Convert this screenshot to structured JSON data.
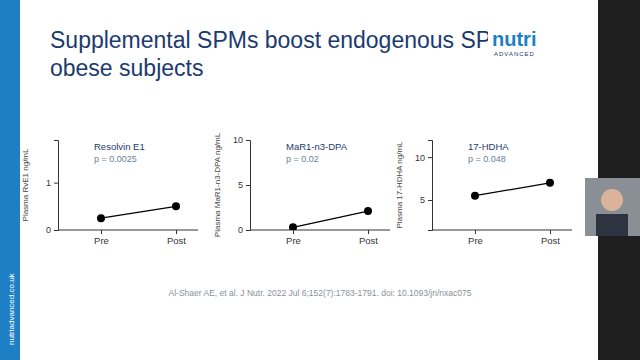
{
  "slide": {
    "title_lines": [
      "Supplemental SPMs boost endogenous SPMs in",
      "obese subjects"
    ],
    "logo": [
      "nutri",
      "ADVANCED"
    ],
    "side_text": "nutriadvanced.co.uk",
    "citation": "Al-Shaer AE, et al. J Nutr. 2022 Jul 6;152(7):1783-1791. doi: 10.1093/jn/nxac075"
  },
  "chart_data": [
    {
      "type": "line",
      "title": "Resolvin E1",
      "subtitle": "p = 0.0025",
      "y_label": "Plasma RvE1 ng/mL",
      "categories": [
        "Pre",
        "Post"
      ],
      "values": [
        0.25,
        0.5
      ],
      "color": "#000000",
      "marker": "circle",
      "ylim": [
        0,
        1.9
      ],
      "yticks": [
        0,
        1
      ]
    },
    {
      "type": "line",
      "title": "MaR1-n3-DPA",
      "subtitle": "p = 0.02",
      "y_label": "Plasma MaR1-n3-DPA ng/mL",
      "categories": [
        "Pre",
        "Post"
      ],
      "values": [
        0.3,
        2.1
      ],
      "color": "#000000",
      "marker": "circle",
      "ylim": [
        0,
        10
      ],
      "yticks": [
        0,
        5,
        10
      ]
    },
    {
      "type": "line",
      "title": "17-HDHA",
      "subtitle": "p = 0.048",
      "y_label": "Plasma 17-HDHA ng/mL",
      "categories": [
        "Pre",
        "Post"
      ],
      "values": [
        5.5,
        7.0
      ],
      "color": "#000000",
      "marker": "circle",
      "ylim": [
        1.5,
        12
      ],
      "yticks": [
        5,
        10
      ]
    }
  ]
}
